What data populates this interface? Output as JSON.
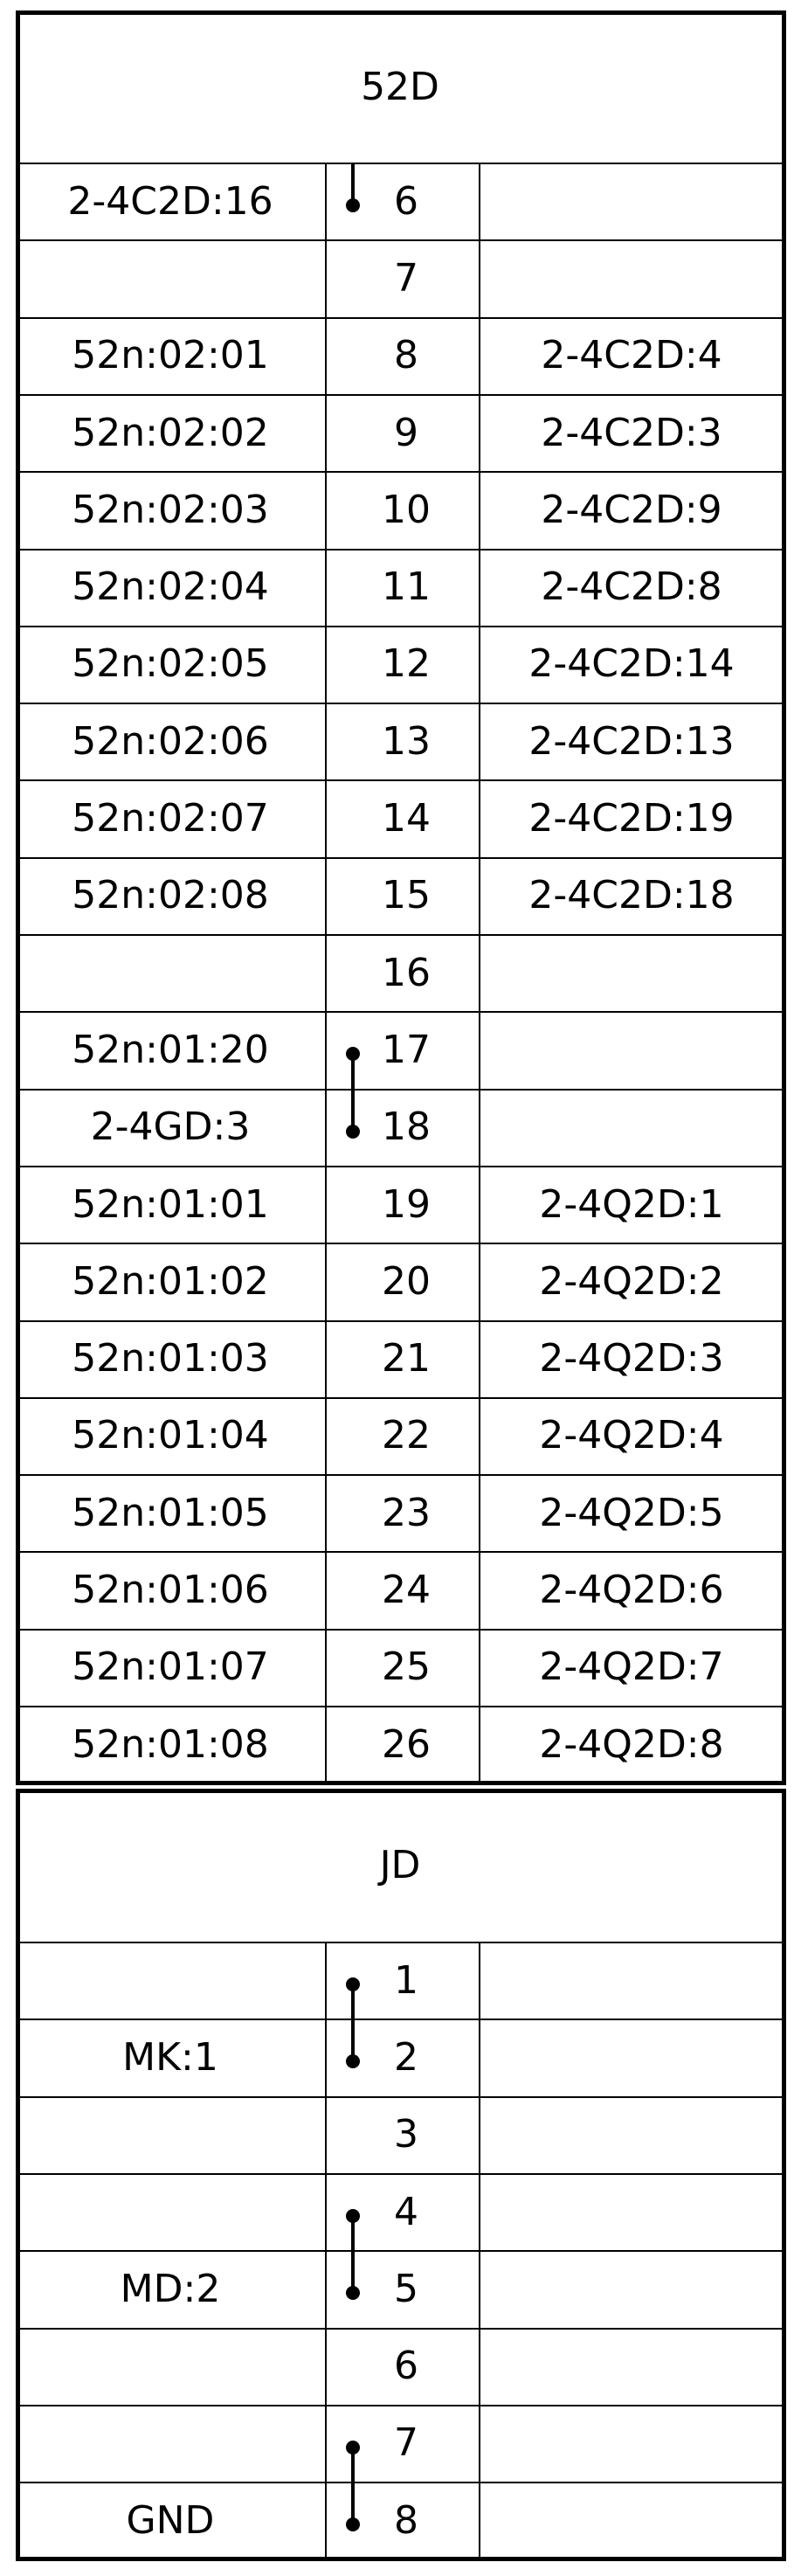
{
  "blocks": [
    {
      "title": "52D",
      "rows": [
        {
          "left": "2-4C2D:16",
          "num": "6",
          "right": ""
        },
        {
          "left": "",
          "num": "7",
          "right": ""
        },
        {
          "left": "52n:02:01",
          "num": "8",
          "right": "2-4C2D:4"
        },
        {
          "left": "52n:02:02",
          "num": "9",
          "right": "2-4C2D:3"
        },
        {
          "left": "52n:02:03",
          "num": "10",
          "right": "2-4C2D:9"
        },
        {
          "left": "52n:02:04",
          "num": "11",
          "right": "2-4C2D:8"
        },
        {
          "left": "52n:02:05",
          "num": "12",
          "right": "2-4C2D:14"
        },
        {
          "left": "52n:02:06",
          "num": "13",
          "right": "2-4C2D:13"
        },
        {
          "left": "52n:02:07",
          "num": "14",
          "right": "2-4C2D:19"
        },
        {
          "left": "52n:02:08",
          "num": "15",
          "right": "2-4C2D:18"
        },
        {
          "left": "",
          "num": "16",
          "right": ""
        },
        {
          "left": "52n:01:20",
          "num": "17",
          "right": ""
        },
        {
          "left": "2-4GD:3",
          "num": "18",
          "right": ""
        },
        {
          "left": "52n:01:01",
          "num": "19",
          "right": "2-4Q2D:1"
        },
        {
          "left": "52n:01:02",
          "num": "20",
          "right": "2-4Q2D:2"
        },
        {
          "left": "52n:01:03",
          "num": "21",
          "right": "2-4Q2D:3"
        },
        {
          "left": "52n:01:04",
          "num": "22",
          "right": "2-4Q2D:4"
        },
        {
          "left": "52n:01:05",
          "num": "23",
          "right": "2-4Q2D:5"
        },
        {
          "left": "52n:01:06",
          "num": "24",
          "right": "2-4Q2D:6"
        },
        {
          "left": "52n:01:07",
          "num": "25",
          "right": "2-4Q2D:7"
        },
        {
          "left": "52n:01:08",
          "num": "26",
          "right": "2-4Q2D:8"
        }
      ],
      "jumpers": [
        [
          0
        ],
        [
          11,
          12
        ]
      ]
    },
    {
      "title": "JD",
      "rows": [
        {
          "left": "",
          "num": "1",
          "right": ""
        },
        {
          "left": "MK:1",
          "num": "2",
          "right": ""
        },
        {
          "left": "",
          "num": "3",
          "right": ""
        },
        {
          "left": "",
          "num": "4",
          "right": ""
        },
        {
          "left": "MD:2",
          "num": "5",
          "right": ""
        },
        {
          "left": "",
          "num": "6",
          "right": ""
        },
        {
          "left": "",
          "num": "7",
          "right": ""
        },
        {
          "left": "GND",
          "num": "8",
          "right": ""
        }
      ],
      "jumpers": [
        [
          0,
          1
        ],
        [
          3,
          4
        ],
        [
          6,
          7
        ]
      ]
    }
  ]
}
